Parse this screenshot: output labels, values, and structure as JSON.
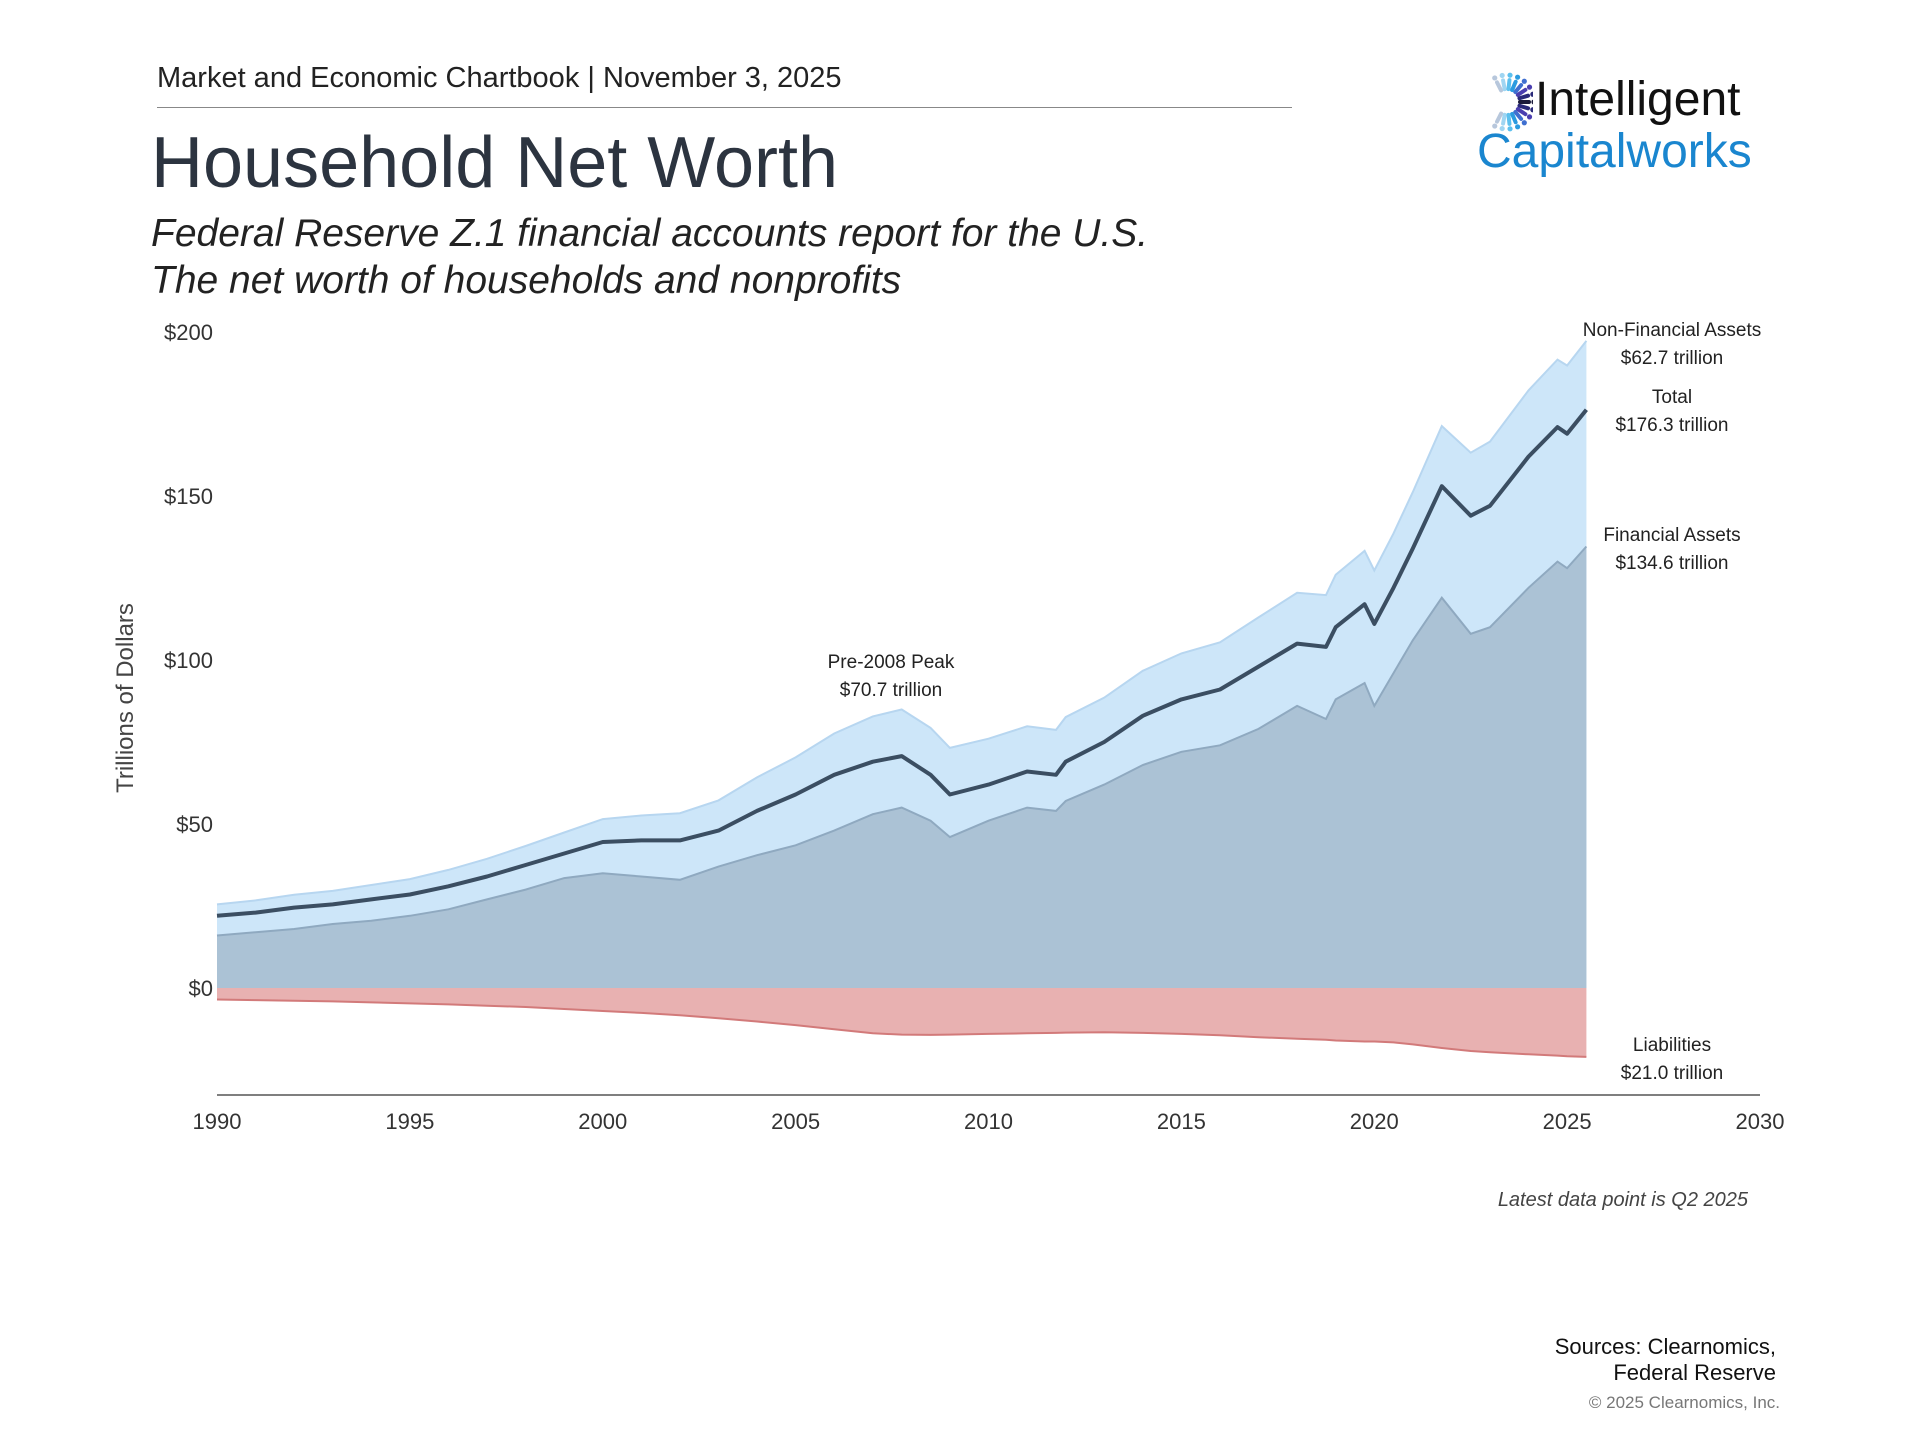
{
  "header": {
    "kicker": "Market and Economic Chartbook | November 3, 2025",
    "title": "Household Net Worth",
    "subtitle_1": "Federal Reserve Z.1 financial accounts report for the U.S.",
    "subtitle_2": "The net worth of households and nonprofits"
  },
  "logo": {
    "line1": "Intelligent",
    "line2": "Capitalworks"
  },
  "footer": {
    "note": "Latest data point is Q2 2025",
    "sources_1": "Sources: Clearnomics,",
    "sources_2": "Federal Reserve",
    "copyright": "© 2025 Clearnomics, Inc."
  },
  "colors": {
    "non_financial": "#cde6f9",
    "financial": "#abc2d5",
    "net_worth_line": "#3b4e62",
    "liabilities": "#e8b1b1",
    "liabilities_edge": "#d27a7a",
    "logo_blue": "#1a86cf"
  },
  "chart_data": {
    "type": "area",
    "ylabel": "Trillions of Dollars",
    "ylim": [
      -33,
      200
    ],
    "xlim": [
      1990,
      2030
    ],
    "yticks": [
      {
        "v": 200,
        "label": "$200"
      },
      {
        "v": 150,
        "label": "$150"
      },
      {
        "v": 100,
        "label": "$100"
      },
      {
        "v": 50,
        "label": "$50"
      },
      {
        "v": 0,
        "label": "$0"
      }
    ],
    "xticks": [
      1990,
      1995,
      2000,
      2005,
      2010,
      2015,
      2020,
      2025,
      2030
    ],
    "x": [
      1990,
      1991,
      1992,
      1993,
      1994,
      1995,
      1996,
      1997,
      1998,
      1999,
      2000,
      2001,
      2002,
      2003,
      2004,
      2005,
      2006,
      2007,
      2007.75,
      2008.5,
      2009,
      2010,
      2011,
      2011.75,
      2012,
      2013,
      2014,
      2015,
      2016,
      2017,
      2018,
      2018.75,
      2019,
      2019.75,
      2020,
      2020.5,
      2021,
      2021.75,
      2022.5,
      2023,
      2024,
      2024.75,
      2025,
      2025.5
    ],
    "series": [
      {
        "name": "Financial Assets",
        "values": [
          16,
          17,
          18,
          19.5,
          20.5,
          22,
          24,
          27,
          30,
          33.5,
          35,
          34,
          33,
          37,
          40.5,
          43.5,
          48,
          53,
          55,
          51,
          46,
          51,
          55,
          54,
          57,
          62,
          68,
          72,
          74,
          79,
          86,
          82,
          88,
          93,
          86,
          96,
          106,
          119,
          108,
          110,
          122,
          130,
          128,
          134.6
        ]
      },
      {
        "name": "Total",
        "values": [
          22,
          23,
          24.5,
          25.5,
          27,
          28.5,
          31,
          34,
          37.5,
          41,
          44.5,
          45,
          45,
          48,
          54,
          59,
          65,
          69,
          70.7,
          65,
          59,
          62,
          66,
          65,
          69,
          75,
          83,
          88,
          91,
          98,
          105,
          104,
          110,
          117,
          111,
          122,
          134,
          153,
          144,
          147,
          162,
          171,
          169,
          176.3
        ]
      },
      {
        "name": "Liabilities",
        "values": [
          3.5,
          3.7,
          3.9,
          4.1,
          4.4,
          4.7,
          5.0,
          5.4,
          5.8,
          6.4,
          7.0,
          7.6,
          8.3,
          9.2,
          10.2,
          11.3,
          12.6,
          13.8,
          14.2,
          14.3,
          14.2,
          14.0,
          13.8,
          13.7,
          13.6,
          13.5,
          13.7,
          14.0,
          14.4,
          15.0,
          15.5,
          15.8,
          16.0,
          16.3,
          16.3,
          16.6,
          17.2,
          18.3,
          19.2,
          19.6,
          20.2,
          20.6,
          20.8,
          21.0
        ]
      }
    ],
    "annotations": {
      "non_financial_label": "Non-Financial Assets",
      "non_financial_value": "$62.7 trillion",
      "total_label": "Total",
      "total_value": "$176.3 trillion",
      "financial_label": "Financial Assets",
      "financial_value": "$134.6 trillion",
      "liabilities_label": "Liabilities",
      "liabilities_value": "$21.0 trillion",
      "peak_label": "Pre-2008 Peak",
      "peak_value": "$70.7 trillion"
    }
  }
}
